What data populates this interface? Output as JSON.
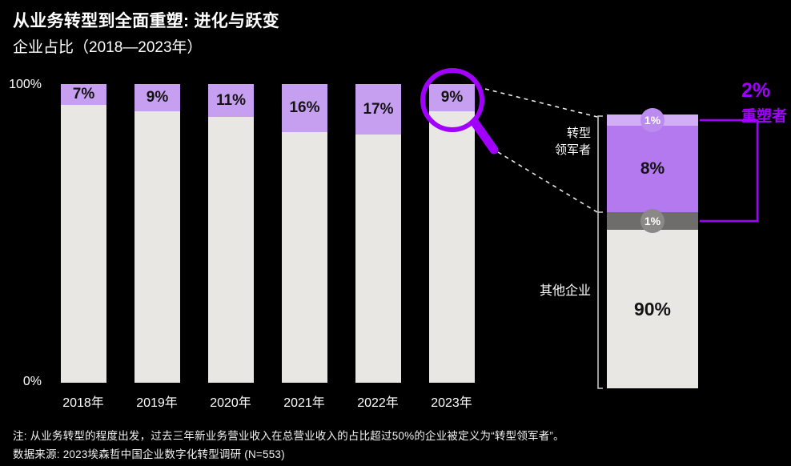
{
  "colors": {
    "background": "#000000",
    "accent": "#a100ff",
    "bar_purple": "#c79ff0",
    "bar_gray": "#e9e7e3",
    "label_dark": "#141414",
    "detail_light_purple": "#d2aef6",
    "detail_purple": "#b478ef",
    "detail_gray": "#6f6c6c",
    "badge_purple": "#bb8bf0",
    "badge_gray": "#8b8888"
  },
  "icons": {
    "magnifier": "magnifying-glass"
  },
  "y_axis": {
    "top": "100%",
    "bottom": "0%"
  },
  "chart_data": {
    "type": "bar",
    "stacked": true,
    "title": "从业务转型到全面重塑: 进化与跃变",
    "subtitle": "企业占比（2018—2023年）",
    "categories": [
      "2018年",
      "2019年",
      "2020年",
      "2021年",
      "2022年",
      "2023年"
    ],
    "series": [
      {
        "name": "转型领军者",
        "color": "#c79ff0",
        "values": [
          7,
          9,
          11,
          16,
          17,
          9
        ]
      },
      {
        "name": "其他企业",
        "color": "#e9e7e3",
        "values": [
          93,
          91,
          89,
          84,
          83,
          91
        ]
      }
    ],
    "bar_labels": [
      "7%",
      "9%",
      "11%",
      "16%",
      "17%",
      "9%"
    ],
    "ylim": [
      0,
      100
    ],
    "grid": false,
    "highlight": {
      "category": "2023年",
      "label": "9%"
    },
    "detail_breakdown": {
      "segments": [
        {
          "label": "1%",
          "value": 1,
          "color": "#d2aef6"
        },
        {
          "label": "8%",
          "value": 8,
          "color": "#b478ef"
        },
        {
          "label": "1%",
          "value": 1,
          "color": "#6f6c6c"
        },
        {
          "label": "90%",
          "value": 90,
          "color": "#e9e7e3"
        }
      ],
      "group_labels": [
        {
          "label": "转型\n领军者",
          "spans": "1% + 8%"
        },
        {
          "label": "其他企业",
          "spans": "1% + 90%"
        }
      ],
      "callout": {
        "value": "2%",
        "label": "重塑者"
      }
    }
  },
  "notes": [
    "注: 从业务转型的程度出发，过去三年新业务营业收入在总营业收入的占比超过50%的企业被定义为“转型领军者”。",
    "数据来源: 2023埃森哲中国企业数字化转型调研 (N=553)"
  ]
}
